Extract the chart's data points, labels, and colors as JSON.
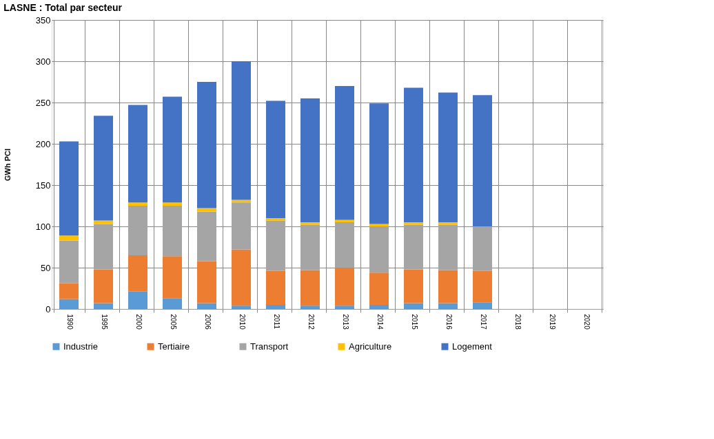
{
  "chart_data": {
    "type": "bar",
    "title": "LASNE : Total par secteur",
    "ylabel": "GWh PCI",
    "stacked": true,
    "categories": [
      "1990",
      "1995",
      "2000",
      "2005",
      "2006",
      "2010",
      "2011",
      "2012",
      "2013",
      "2014",
      "2015",
      "2016",
      "2017",
      "2018",
      "2019",
      "2020"
    ],
    "series": [
      {
        "name": "Industrie",
        "color": "#5b9bd5",
        "values": [
          12,
          7,
          21,
          13,
          7,
          4,
          5,
          4,
          4,
          5,
          7,
          7,
          8,
          null,
          null,
          null
        ]
      },
      {
        "name": "Tertiaire",
        "color": "#ed7d31",
        "values": [
          19,
          41,
          44,
          51,
          51,
          68,
          41,
          43,
          46,
          39,
          41,
          40,
          38,
          null,
          null,
          null
        ]
      },
      {
        "name": "Transport",
        "color": "#a5a5a5",
        "values": [
          52,
          55,
          60,
          61,
          60,
          57,
          61,
          55,
          55,
          56,
          54,
          55,
          54,
          null,
          null,
          null
        ]
      },
      {
        "name": "Agriculture",
        "color": "#ffc000",
        "values": [
          6,
          4,
          4,
          4,
          4,
          3,
          3,
          3,
          3,
          3,
          3,
          3,
          0,
          null,
          null,
          null
        ]
      },
      {
        "name": "Logement",
        "color": "#4472c4",
        "values": [
          114,
          127,
          118,
          128,
          153,
          168,
          142,
          150,
          162,
          146,
          163,
          157,
          159,
          null,
          null,
          null
        ]
      }
    ],
    "ylim": [
      0,
      350
    ],
    "yticks": [
      0,
      50,
      100,
      150,
      200,
      250,
      300,
      350
    ],
    "grid": true,
    "legend": "bottom"
  }
}
